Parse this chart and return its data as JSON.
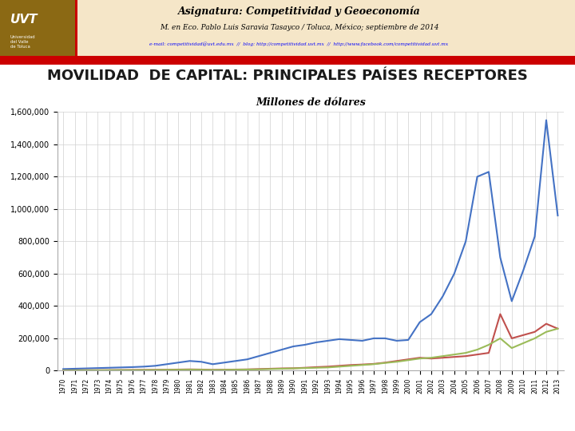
{
  "title_main": "MOVILIDAD  DE CAPITAL: PRINCIPALES PAÍSES RECEPTORES",
  "title_sub": "Millones de dólares",
  "header_title": "Asignatura: Competitividad y Geoeconomía",
  "header_sub": "M. en Eco. Pablo Luis Saravia Tasayco / Toluca, México; septiembre de 2014",
  "header_email": "e-mail: competitividad@uvt.edu.mx  //  blog: http://competitividad.uvt.mx  //  http://www.facebook.com/competitividad.uvt.mx",
  "years": [
    1970,
    1971,
    1972,
    1973,
    1974,
    1975,
    1976,
    1977,
    1978,
    1979,
    1980,
    1981,
    1982,
    1983,
    1984,
    1985,
    1986,
    1987,
    1988,
    1989,
    1990,
    1991,
    1992,
    1993,
    1994,
    1995,
    1996,
    1997,
    1998,
    1999,
    2000,
    2001,
    2002,
    2003,
    2004,
    2005,
    2006,
    2007,
    2008,
    2009,
    2010,
    2011,
    2012,
    2013
  ],
  "industrialized": [
    10000,
    12000,
    14000,
    16000,
    18000,
    20000,
    22000,
    25000,
    30000,
    40000,
    50000,
    60000,
    55000,
    40000,
    50000,
    60000,
    70000,
    90000,
    110000,
    130000,
    150000,
    160000,
    175000,
    185000,
    195000,
    190000,
    185000,
    200000,
    200000,
    185000,
    190000,
    300000,
    350000,
    460000,
    600000,
    800000,
    1200000,
    1230000,
    700000,
    430000,
    620000,
    830000,
    1550000,
    960000
  ],
  "industrialized_emerging": [
    2000,
    2500,
    3000,
    3000,
    3500,
    4000,
    4500,
    5000,
    5500,
    6000,
    7000,
    8000,
    7000,
    5000,
    6000,
    7000,
    8000,
    10000,
    12000,
    14000,
    15000,
    18000,
    22000,
    25000,
    30000,
    35000,
    38000,
    42000,
    50000,
    60000,
    70000,
    80000,
    75000,
    80000,
    85000,
    90000,
    100000,
    110000,
    350000,
    200000,
    220000,
    240000,
    290000,
    260000
  ],
  "emerging": [
    1000,
    1500,
    2000,
    2000,
    2500,
    3000,
    3000,
    3500,
    4000,
    5000,
    5500,
    6000,
    5500,
    4000,
    5000,
    6000,
    7000,
    8000,
    10000,
    12000,
    14000,
    16000,
    18000,
    20000,
    25000,
    30000,
    35000,
    40000,
    48000,
    55000,
    65000,
    75000,
    80000,
    90000,
    100000,
    110000,
    130000,
    160000,
    200000,
    140000,
    170000,
    200000,
    240000,
    260000
  ],
  "color_industrialized": "#4472C4",
  "color_ind_emerging": "#C0504D",
  "color_emerging": "#9BBB59",
  "ylim": [
    0,
    1600000
  ],
  "yticks": [
    0,
    200000,
    400000,
    600000,
    800000,
    1000000,
    1200000,
    1400000,
    1600000
  ],
  "header_bg": "#F5E6C8",
  "red_bar_color": "#CC0000",
  "uvt_box_color": "#8B6914"
}
